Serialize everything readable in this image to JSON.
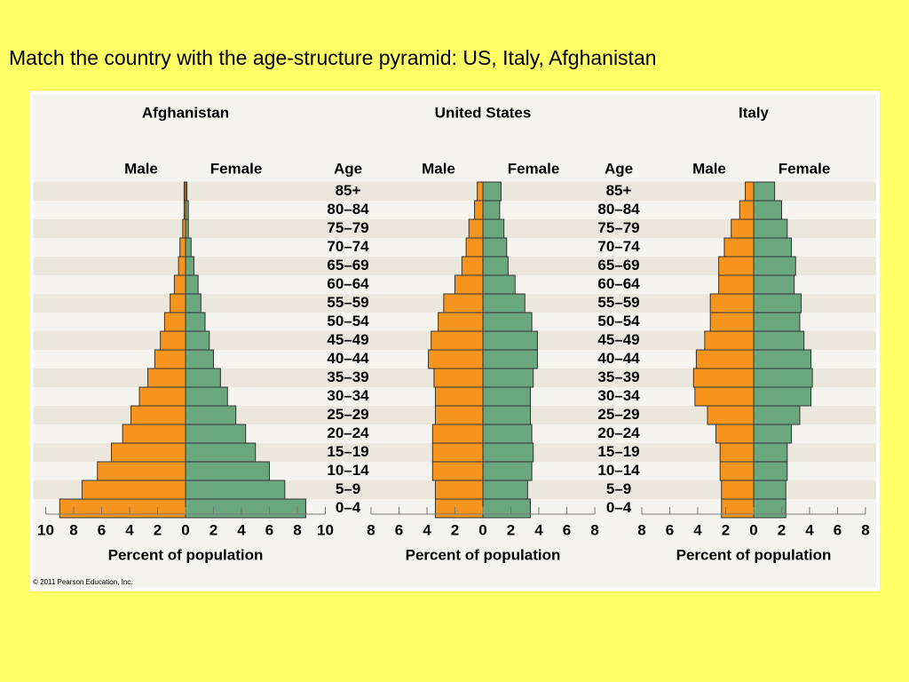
{
  "heading": "Match the country with the age-structure pyramid:  US, Italy, Afghanistan",
  "copyright": "© 2011 Pearson Education, Inc.",
  "chart_data": [
    {
      "type": "pyramid",
      "title": "Afghanistan",
      "x_label": "Percent of population",
      "xlim": [
        -10,
        10
      ],
      "xticks": [
        {
          "value": -10,
          "label": "10"
        },
        {
          "value": -8,
          "label": "8"
        },
        {
          "value": -6,
          "label": "6"
        },
        {
          "value": -4,
          "label": "4"
        },
        {
          "value": -2,
          "label": "2"
        },
        0,
        2,
        4,
        6,
        8,
        10
      ],
      "series": [
        {
          "name": "Male",
          "color": "#f7941d",
          "values": [
            0.1,
            0.1,
            0.2,
            0.4,
            0.5,
            0.8,
            1.1,
            1.5,
            1.8,
            2.2,
            2.7,
            3.3,
            3.9,
            4.5,
            5.3,
            6.3,
            7.4,
            9.0
          ]
        },
        {
          "name": "Female",
          "color": "#6aa77e",
          "values": [
            0.1,
            0.2,
            0.2,
            0.4,
            0.6,
            0.9,
            1.1,
            1.4,
            1.7,
            2.0,
            2.5,
            3.0,
            3.6,
            4.3,
            5.0,
            6.0,
            7.1,
            8.6
          ]
        }
      ]
    },
    {
      "type": "pyramid",
      "title": "United States",
      "x_label": "Percent of population",
      "age_label": "Age",
      "categories": [
        "85+",
        "80–84",
        "75–79",
        "70–74",
        "65–69",
        "60–64",
        "55–59",
        "50–54",
        "45–49",
        "40–44",
        "35–39",
        "30–34",
        "25–29",
        "20–24",
        "15–19",
        "10–14",
        "5–9",
        "0–4"
      ],
      "xlim": [
        -8,
        8
      ],
      "xticks": [
        {
          "value": -8,
          "label": "8"
        },
        {
          "value": -6,
          "label": "6"
        },
        {
          "value": -4,
          "label": "4"
        },
        {
          "value": -2,
          "label": "2"
        },
        0,
        2,
        4,
        6,
        8
      ],
      "series": [
        {
          "name": "Male",
          "color": "#f7941d",
          "values": [
            0.4,
            0.6,
            1.0,
            1.2,
            1.5,
            2.0,
            2.8,
            3.2,
            3.7,
            3.9,
            3.5,
            3.4,
            3.4,
            3.6,
            3.6,
            3.6,
            3.4,
            3.4
          ]
        },
        {
          "name": "Female",
          "color": "#6aa77e",
          "values": [
            1.3,
            1.2,
            1.5,
            1.7,
            1.8,
            2.3,
            3.0,
            3.5,
            3.9,
            3.9,
            3.6,
            3.4,
            3.4,
            3.5,
            3.6,
            3.5,
            3.2,
            3.4
          ]
        }
      ]
    },
    {
      "type": "pyramid",
      "title": "Italy",
      "x_label": "Percent of population",
      "age_label": "Age",
      "categories": [
        "85+",
        "80–84",
        "75–79",
        "70–74",
        "65–69",
        "60–64",
        "55–59",
        "50–54",
        "45–49",
        "40–44",
        "35–39",
        "30–34",
        "25–29",
        "20–24",
        "15–19",
        "10–14",
        "5–9",
        "0–4"
      ],
      "xlim": [
        -8,
        8
      ],
      "xticks": [
        {
          "value": -8,
          "label": "8"
        },
        {
          "value": -6,
          "label": "6"
        },
        {
          "value": -4,
          "label": "4"
        },
        {
          "value": -2,
          "label": "2"
        },
        0,
        2,
        4,
        6,
        8
      ],
      "series": [
        {
          "name": "Male",
          "color": "#f7941d",
          "values": [
            0.6,
            1.0,
            1.6,
            2.1,
            2.5,
            2.5,
            3.1,
            3.1,
            3.5,
            4.1,
            4.3,
            4.2,
            3.3,
            2.7,
            2.4,
            2.4,
            2.3,
            2.3
          ]
        },
        {
          "name": "Female",
          "color": "#6aa77e",
          "values": [
            1.5,
            2.0,
            2.4,
            2.7,
            3.0,
            2.9,
            3.4,
            3.3,
            3.6,
            4.1,
            4.2,
            4.1,
            3.3,
            2.7,
            2.4,
            2.4,
            2.3,
            2.3
          ]
        }
      ]
    }
  ]
}
